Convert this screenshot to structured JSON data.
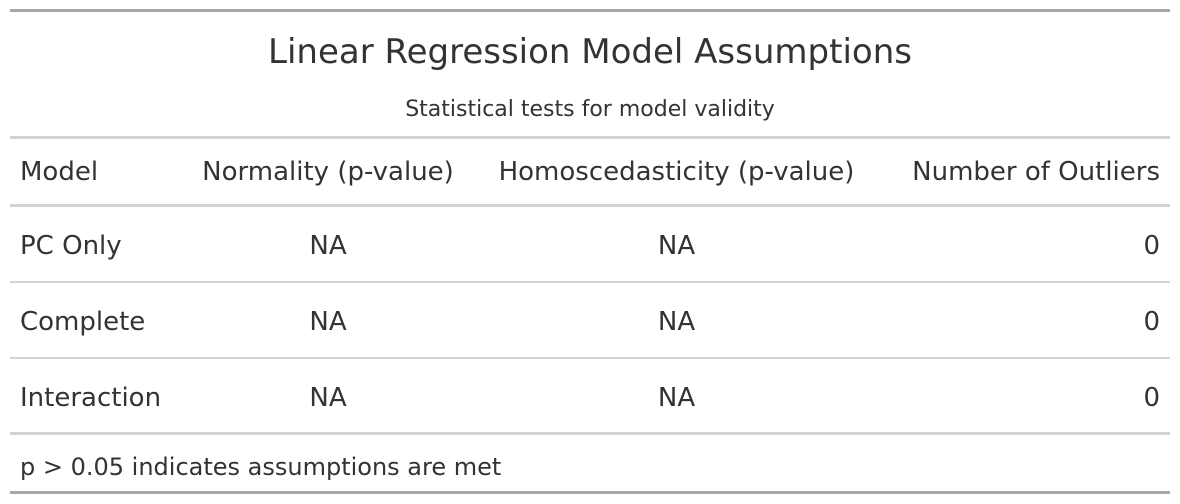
{
  "title": "Linear Regression Model Assumptions",
  "subtitle": "Statistical tests for model validity",
  "columns": {
    "model": "Model",
    "normality": "Normality (p-value)",
    "homoscedasticity": "Homoscedasticity (p-value)",
    "outliers": "Number of Outliers"
  },
  "rows": [
    {
      "model": "PC Only",
      "normality": "NA",
      "homoscedasticity": "NA",
      "outliers": "0"
    },
    {
      "model": "Complete",
      "normality": "NA",
      "homoscedasticity": "NA",
      "outliers": "0"
    },
    {
      "model": "Interaction",
      "normality": "NA",
      "homoscedasticity": "NA",
      "outliers": "0"
    }
  ],
  "footnote": "p > 0.05 indicates assumptions are met"
}
